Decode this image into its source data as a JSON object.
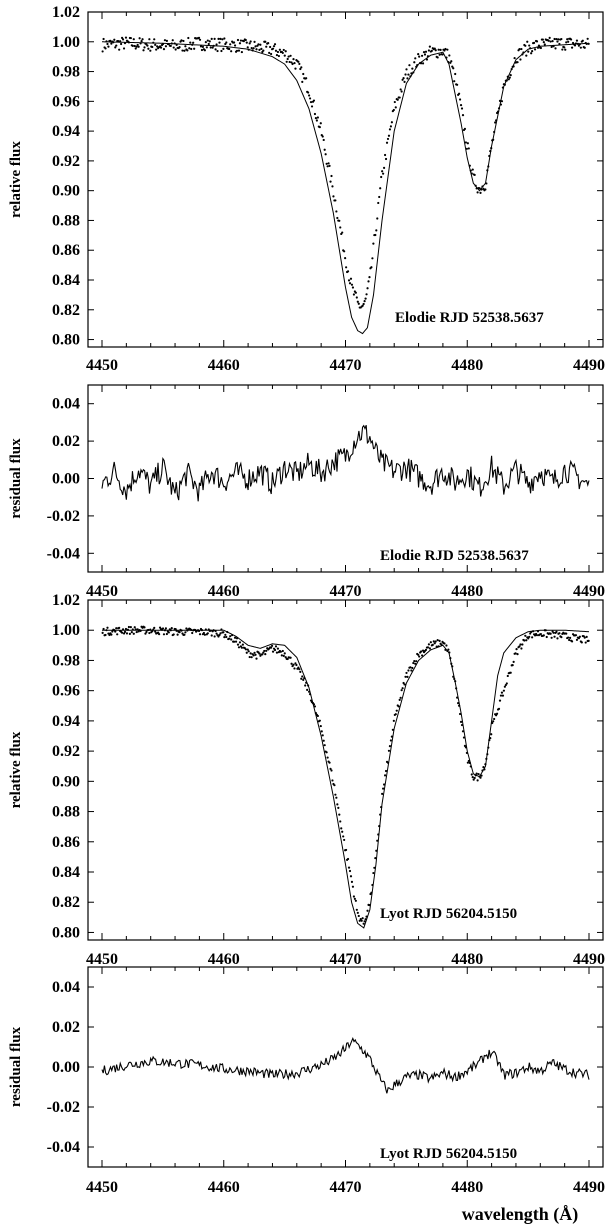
{
  "chart_data": [
    {
      "type": "scatter",
      "title": "",
      "xlabel": "",
      "ylabel": "relative flux",
      "xlim": [
        4450,
        4490
      ],
      "ylim": [
        0.795,
        1.02
      ],
      "xticks": [
        "4450",
        "4460",
        "4470",
        "4480",
        "4490"
      ],
      "yticks": [
        "0.80",
        "0.82",
        "0.84",
        "0.86",
        "0.88",
        "0.90",
        "0.92",
        "0.94",
        "0.96",
        "0.98",
        "1.00",
        "1.02"
      ],
      "annotation": "Elodie  RJD 52538.5637",
      "grid": false,
      "legend": "none",
      "series": [
        {
          "style": "dots",
          "x": [
            4450,
            4452,
            4454,
            4456,
            4458,
            4460,
            4462,
            4464,
            4465,
            4466,
            4467,
            4468,
            4469,
            4469.5,
            4470,
            4470.5,
            4471,
            4471.3,
            4471.6,
            4472,
            4472.5,
            4473,
            4474,
            4475,
            4476,
            4477,
            4478,
            4478.5,
            4479,
            4479.5,
            4480,
            4480.5,
            4481,
            4481.5,
            4482,
            4483,
            4484,
            4485,
            4486,
            4488,
            4490
          ],
          "y": [
            0.998,
            0.999,
            0.998,
            0.997,
            0.999,
            0.998,
            0.997,
            0.995,
            0.992,
            0.985,
            0.968,
            0.94,
            0.9,
            0.878,
            0.855,
            0.835,
            0.824,
            0.822,
            0.824,
            0.84,
            0.875,
            0.91,
            0.955,
            0.978,
            0.988,
            0.993,
            0.994,
            0.99,
            0.975,
            0.955,
            0.93,
            0.908,
            0.901,
            0.905,
            0.93,
            0.97,
            0.99,
            0.996,
            0.998,
            0.999,
            0.998
          ]
        },
        {
          "style": "line",
          "x": [
            4450,
            4455,
            4460,
            4462,
            4464,
            4465,
            4466,
            4467,
            4468,
            4469,
            4469.5,
            4470,
            4470.5,
            4471,
            4471.4,
            4471.8,
            4472.3,
            4473,
            4474,
            4475,
            4476,
            4477,
            4478,
            4478.5,
            4479,
            4479.5,
            4480,
            4480.5,
            4481,
            4481.5,
            4482,
            4483,
            4484,
            4485,
            4486,
            4488,
            4490
          ],
          "y": [
            1.0,
            0.999,
            0.997,
            0.995,
            0.99,
            0.985,
            0.974,
            0.955,
            0.925,
            0.885,
            0.86,
            0.835,
            0.815,
            0.806,
            0.804,
            0.808,
            0.83,
            0.88,
            0.94,
            0.972,
            0.985,
            0.991,
            0.993,
            0.985,
            0.965,
            0.945,
            0.922,
            0.905,
            0.9,
            0.905,
            0.93,
            0.97,
            0.988,
            0.995,
            0.997,
            0.998,
            0.999
          ]
        }
      ]
    },
    {
      "type": "line",
      "title": "",
      "xlabel": "",
      "ylabel": "residual flux",
      "xlim": [
        4450,
        4490
      ],
      "ylim": [
        -0.05,
        0.05
      ],
      "xticks": [
        "4450",
        "4460",
        "4470",
        "4480",
        "4490"
      ],
      "yticks": [
        "-0.04",
        "-0.02",
        "0.00",
        "0.02",
        "0.04"
      ],
      "annotation": "Elodie  RJD 52538.5637",
      "grid": false,
      "legend": "none",
      "series": [
        {
          "x": [
            4450,
            4451,
            4452,
            4453,
            4454,
            4455,
            4456,
            4457,
            4458,
            4459,
            4460,
            4461,
            4462,
            4463,
            4464,
            4465,
            4466,
            4467,
            4468,
            4469,
            4470,
            4470.5,
            4471,
            4471.5,
            4472,
            4472.5,
            4473,
            4474,
            4475,
            4476,
            4477,
            4478,
            4479,
            4480,
            4481,
            4482,
            4483,
            4484,
            4485,
            4486,
            4487,
            4488,
            4489,
            4490
          ],
          "y": [
            -0.003,
            0.004,
            -0.006,
            0.005,
            -0.004,
            0.006,
            -0.009,
            0.003,
            -0.007,
            0.004,
            -0.002,
            0.003,
            0.0,
            0.004,
            -0.003,
            0.006,
            0.002,
            0.008,
            0.003,
            0.009,
            0.012,
            0.018,
            0.023,
            0.025,
            0.022,
            0.014,
            0.008,
            0.004,
            0.006,
            0.001,
            -0.003,
            0.004,
            -0.002,
            0.003,
            -0.005,
            0.006,
            -0.004,
            0.005,
            -0.003,
            0.004,
            -0.002,
            0.005,
            0.001,
            -0.004
          ]
        }
      ]
    },
    {
      "type": "scatter",
      "title": "",
      "xlabel": "",
      "ylabel": "relative flux",
      "xlim": [
        4450,
        4490
      ],
      "ylim": [
        0.795,
        1.02
      ],
      "xticks": [
        "4450",
        "4460",
        "4470",
        "4480",
        "4490"
      ],
      "yticks": [
        "0.80",
        "0.82",
        "0.84",
        "0.86",
        "0.88",
        "0.90",
        "0.92",
        "0.94",
        "0.96",
        "0.98",
        "1.00",
        "1.02"
      ],
      "annotation": "Lyot  RJD 56204.5150",
      "grid": false,
      "legend": "none",
      "series": [
        {
          "style": "dots",
          "x": [
            4450,
            4452,
            4454,
            4456,
            4458,
            4460,
            4461,
            4462,
            4463,
            4464,
            4465,
            4466,
            4467,
            4468,
            4469,
            4470,
            4470.5,
            4471,
            4471.5,
            4472,
            4472.5,
            4473,
            4474,
            4475,
            4476,
            4477,
            4478,
            4478.5,
            4479,
            4479.5,
            4480,
            4480.5,
            4481,
            4481.5,
            4482,
            4483,
            4484,
            4485,
            4486,
            4488,
            4490
          ],
          "y": [
            0.999,
            1.0,
            1.0,
            0.999,
            0.999,
            0.998,
            0.993,
            0.985,
            0.983,
            0.988,
            0.985,
            0.975,
            0.96,
            0.935,
            0.9,
            0.855,
            0.835,
            0.812,
            0.806,
            0.82,
            0.85,
            0.89,
            0.94,
            0.97,
            0.984,
            0.99,
            0.992,
            0.985,
            0.965,
            0.94,
            0.915,
            0.903,
            0.903,
            0.912,
            0.935,
            0.96,
            0.985,
            0.997,
            0.998,
            0.996,
            0.993
          ]
        },
        {
          "style": "line",
          "x": [
            4450,
            4455,
            4460,
            4461,
            4462,
            4463,
            4464,
            4465,
            4466,
            4467,
            4468,
            4469,
            4470,
            4470.5,
            4471,
            4471.5,
            4472,
            4472.5,
            4473,
            4474,
            4475,
            4476,
            4477,
            4478,
            4478.5,
            4479,
            4479.5,
            4480,
            4480.5,
            4481,
            4481.5,
            4482,
            4482.5,
            4483,
            4484,
            4485,
            4486,
            4488,
            4490
          ],
          "y": [
            1.0,
            1.0,
            1.0,
            0.996,
            0.99,
            0.988,
            0.991,
            0.99,
            0.982,
            0.962,
            0.93,
            0.89,
            0.845,
            0.82,
            0.806,
            0.803,
            0.815,
            0.845,
            0.885,
            0.935,
            0.965,
            0.98,
            0.987,
            0.99,
            0.985,
            0.966,
            0.945,
            0.92,
            0.905,
            0.903,
            0.91,
            0.94,
            0.97,
            0.985,
            0.995,
            0.999,
            1.0,
            1.0,
            0.999
          ]
        }
      ]
    },
    {
      "type": "line",
      "title": "",
      "xlabel": "wavelength (Å)",
      "ylabel": "residual flux",
      "xlim": [
        4450,
        4490
      ],
      "ylim": [
        -0.05,
        0.05
      ],
      "xticks": [
        "4450",
        "4460",
        "4470",
        "4480",
        "4490"
      ],
      "yticks": [
        "-0.04",
        "-0.02",
        "0.00",
        "0.02",
        "0.04"
      ],
      "annotation": "Lyot  RJD 56204.5150",
      "grid": false,
      "legend": "none",
      "series": [
        {
          "x": [
            4450,
            4452,
            4454,
            4456,
            4458,
            4460,
            4462,
            4464,
            4466,
            4468,
            4469,
            4470,
            4470.5,
            4471,
            4471.5,
            4472,
            4472.5,
            4473,
            4473.5,
            4474,
            4475,
            4476,
            4477,
            4478,
            4479,
            4480,
            4481,
            4481.5,
            4482,
            4482.5,
            4483,
            4484,
            4485,
            4486,
            4487,
            4488,
            4489,
            4490
          ],
          "y": [
            -0.002,
            0.001,
            0.003,
            0.002,
            0.001,
            -0.001,
            -0.002,
            -0.004,
            -0.003,
            0.001,
            0.004,
            0.009,
            0.013,
            0.011,
            0.008,
            0.004,
            -0.002,
            -0.008,
            -0.012,
            -0.009,
            -0.005,
            -0.004,
            -0.006,
            -0.003,
            -0.005,
            -0.002,
            0.002,
            0.006,
            0.007,
            0.003,
            -0.004,
            -0.003,
            0.0,
            -0.002,
            0.002,
            -0.001,
            -0.003,
            -0.004
          ]
        }
      ]
    }
  ]
}
